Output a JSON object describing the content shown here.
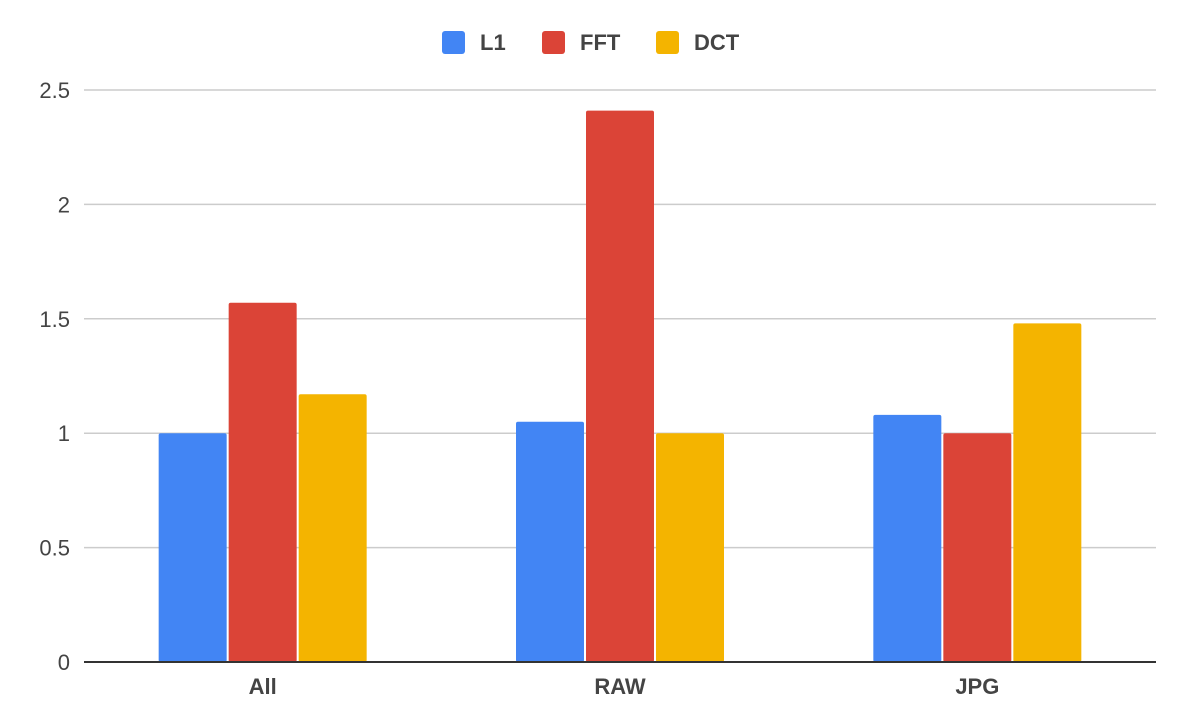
{
  "chart_data": {
    "type": "bar",
    "categories": [
      "All",
      "RAW",
      "JPG"
    ],
    "series": [
      {
        "name": "L1",
        "color": "#4285F4",
        "values": [
          1.0,
          1.05,
          1.08
        ]
      },
      {
        "name": "FFT",
        "color": "#DB4437",
        "values": [
          1.57,
          2.41,
          1.0
        ]
      },
      {
        "name": "DCT",
        "color": "#F4B400",
        "values": [
          1.17,
          1.0,
          1.48
        ]
      }
    ],
    "yticks": [
      "0",
      "0.5",
      "1",
      "1.5",
      "2",
      "2.5"
    ],
    "ytick_values": [
      0,
      0.5,
      1,
      1.5,
      2,
      2.5
    ],
    "ylim": [
      0,
      2.5
    ],
    "grid": true,
    "legend_position": "top-center"
  }
}
